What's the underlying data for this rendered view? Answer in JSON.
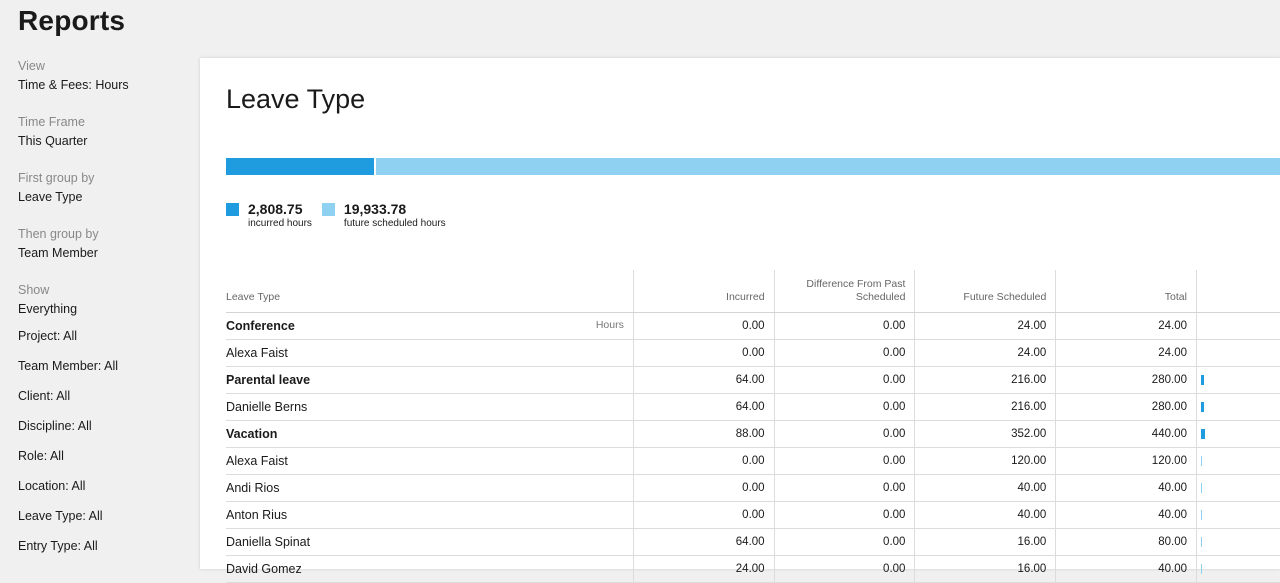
{
  "page": {
    "title": "Reports"
  },
  "sidebar": {
    "groups": [
      {
        "label": "View",
        "value": "Time & Fees: Hours"
      },
      {
        "label": "Time Frame",
        "value": "This Quarter"
      },
      {
        "label": "First group by",
        "value": "Leave Type"
      },
      {
        "label": "Then group by",
        "value": "Team Member"
      },
      {
        "label": "Show",
        "value": "Everything"
      }
    ],
    "filters": [
      "Project: All",
      "Team Member: All",
      "Client: All",
      "Discipline: All",
      "Role: All",
      "Location: All",
      "Leave Type: All",
      "Entry Type: All"
    ]
  },
  "panel": {
    "title": "Leave Type",
    "colors": {
      "incurred": "#1f9ce0",
      "future": "#8fd1f1"
    },
    "totals": {
      "incurred_value": "2,808.75",
      "incurred_caption": "incurred hours",
      "future_value": "19,933.78",
      "future_caption": "future scheduled hours"
    }
  },
  "table": {
    "headers": {
      "name": "Leave Type",
      "incurred": "Incurred",
      "difference": "Difference From Past Scheduled",
      "future": "Future Scheduled",
      "total": "Total"
    },
    "unit_label": "Hours",
    "rows": [
      {
        "name": "Conference",
        "group": true,
        "incurred": "0.00",
        "difference": "0.00",
        "future": "24.00",
        "total": "24.00"
      },
      {
        "name": "Alexa Faist",
        "group": false,
        "incurred": "0.00",
        "difference": "0.00",
        "future": "24.00",
        "total": "24.00"
      },
      {
        "name": "Parental leave",
        "group": true,
        "incurred": "64.00",
        "difference": "0.00",
        "future": "216.00",
        "total": "280.00"
      },
      {
        "name": "Danielle Berns",
        "group": false,
        "incurred": "64.00",
        "difference": "0.00",
        "future": "216.00",
        "total": "280.00"
      },
      {
        "name": "Vacation",
        "group": true,
        "incurred": "88.00",
        "difference": "0.00",
        "future": "352.00",
        "total": "440.00"
      },
      {
        "name": "Alexa Faist",
        "group": false,
        "incurred": "0.00",
        "difference": "0.00",
        "future": "120.00",
        "total": "120.00"
      },
      {
        "name": "Andi Rios",
        "group": false,
        "incurred": "0.00",
        "difference": "0.00",
        "future": "40.00",
        "total": "40.00"
      },
      {
        "name": "Anton Rius",
        "group": false,
        "incurred": "0.00",
        "difference": "0.00",
        "future": "40.00",
        "total": "40.00"
      },
      {
        "name": "Daniella Spinat",
        "group": false,
        "incurred": "64.00",
        "difference": "0.00",
        "future": "16.00",
        "total": "80.00"
      },
      {
        "name": "David Gomez",
        "group": false,
        "incurred": "24.00",
        "difference": "0.00",
        "future": "16.00",
        "total": "40.00"
      }
    ]
  }
}
